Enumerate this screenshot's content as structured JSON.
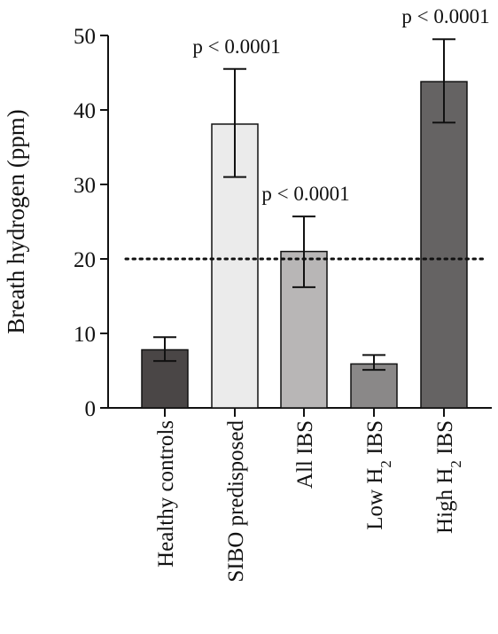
{
  "chart_data": {
    "type": "bar",
    "categories": [
      "Healthy controls",
      "SIBO predisposed",
      "All IBS",
      "Low H2 IBS",
      "High H2 IBS"
    ],
    "category_label_parts": [
      {
        "main": "Healthy controls",
        "sub": "",
        "tail": ""
      },
      {
        "main": "SIBO predisposed",
        "sub": "",
        "tail": ""
      },
      {
        "main": "All IBS",
        "sub": "",
        "tail": ""
      },
      {
        "main": "Low H",
        "sub": "2",
        "tail": " IBS"
      },
      {
        "main": "High H",
        "sub": "2",
        "tail": " IBS"
      }
    ],
    "values": [
      7.8,
      38.1,
      21.0,
      5.9,
      43.8
    ],
    "error_upper": [
      9.5,
      45.5,
      25.7,
      7.1,
      49.5
    ],
    "error_lower": [
      6.3,
      31.0,
      16.2,
      5.1,
      38.3
    ],
    "bar_colors": [
      "#4a4646",
      "#ebebeb",
      "#b8b6b6",
      "#8a8888",
      "#656363"
    ],
    "ylabel": "Breath hydrogen (ppm)",
    "xlabel": "",
    "ylim": [
      0,
      50
    ],
    "yticks": [
      0,
      10,
      20,
      30,
      40,
      50
    ],
    "reference_line": 20,
    "annotations": [
      {
        "category_index": 1,
        "text": "p < 0.0001"
      },
      {
        "category_index": 2,
        "text": "p < 0.0001"
      },
      {
        "category_index": 4,
        "text": "p < 0.0001"
      }
    ]
  }
}
